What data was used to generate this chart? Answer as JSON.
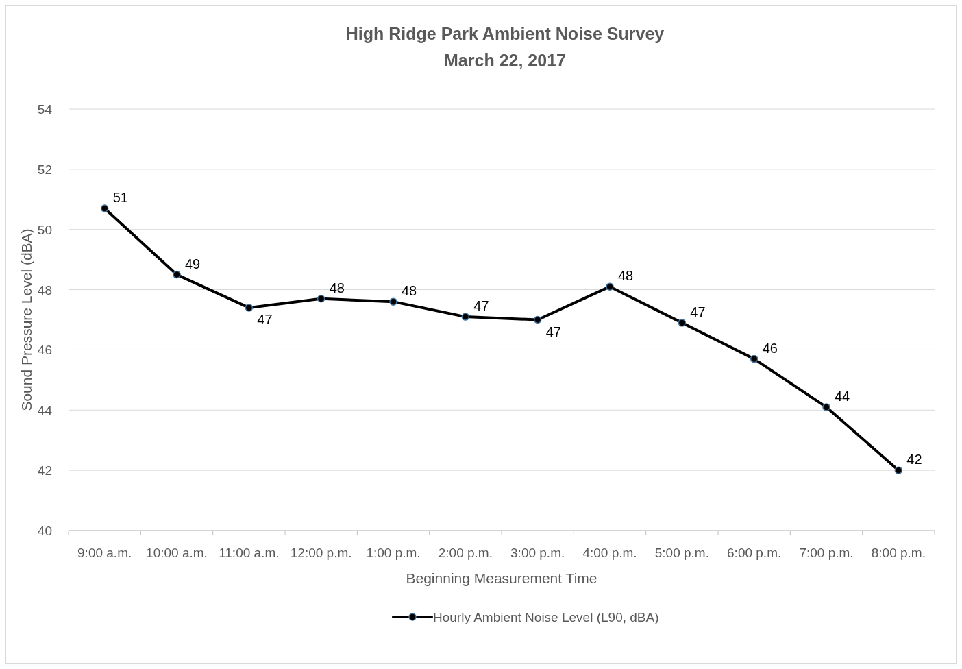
{
  "chart_data": {
    "type": "line",
    "title": "High Ridge Park Ambient Noise Survey",
    "subtitle": "March 22, 2017",
    "xlabel": "Beginning Measurement Time",
    "ylabel": "Sound Pressure Level  (dBA)",
    "categories": [
      "9:00 a.m.",
      "10:00 a.m.",
      "11:00 a.m.",
      "12:00 p.m.",
      "1:00 p.m.",
      "2:00 p.m.",
      "3:00 p.m.",
      "4:00 p.m.",
      "5:00 p.m.",
      "6:00 p.m.",
      "7:00 p.m.",
      "8:00 p.m."
    ],
    "series": [
      {
        "name": "Hourly Ambient Noise Level (L90, dBA)",
        "color": "#000000",
        "values": [
          50.7,
          48.5,
          47.4,
          47.7,
          47.6,
          47.1,
          47.0,
          48.1,
          46.9,
          45.7,
          44.1,
          42.0
        ],
        "value_labels": [
          "51",
          "49",
          "47",
          "48",
          "48",
          "47",
          "47",
          "48",
          "47",
          "46",
          "44",
          "42"
        ]
      }
    ],
    "ylim": [
      40,
      54
    ],
    "yticks": [
      40,
      42,
      44,
      46,
      48,
      50,
      52,
      54
    ],
    "grid": "y",
    "legend": "bottom",
    "marker": "circle",
    "line_style": "solid"
  }
}
